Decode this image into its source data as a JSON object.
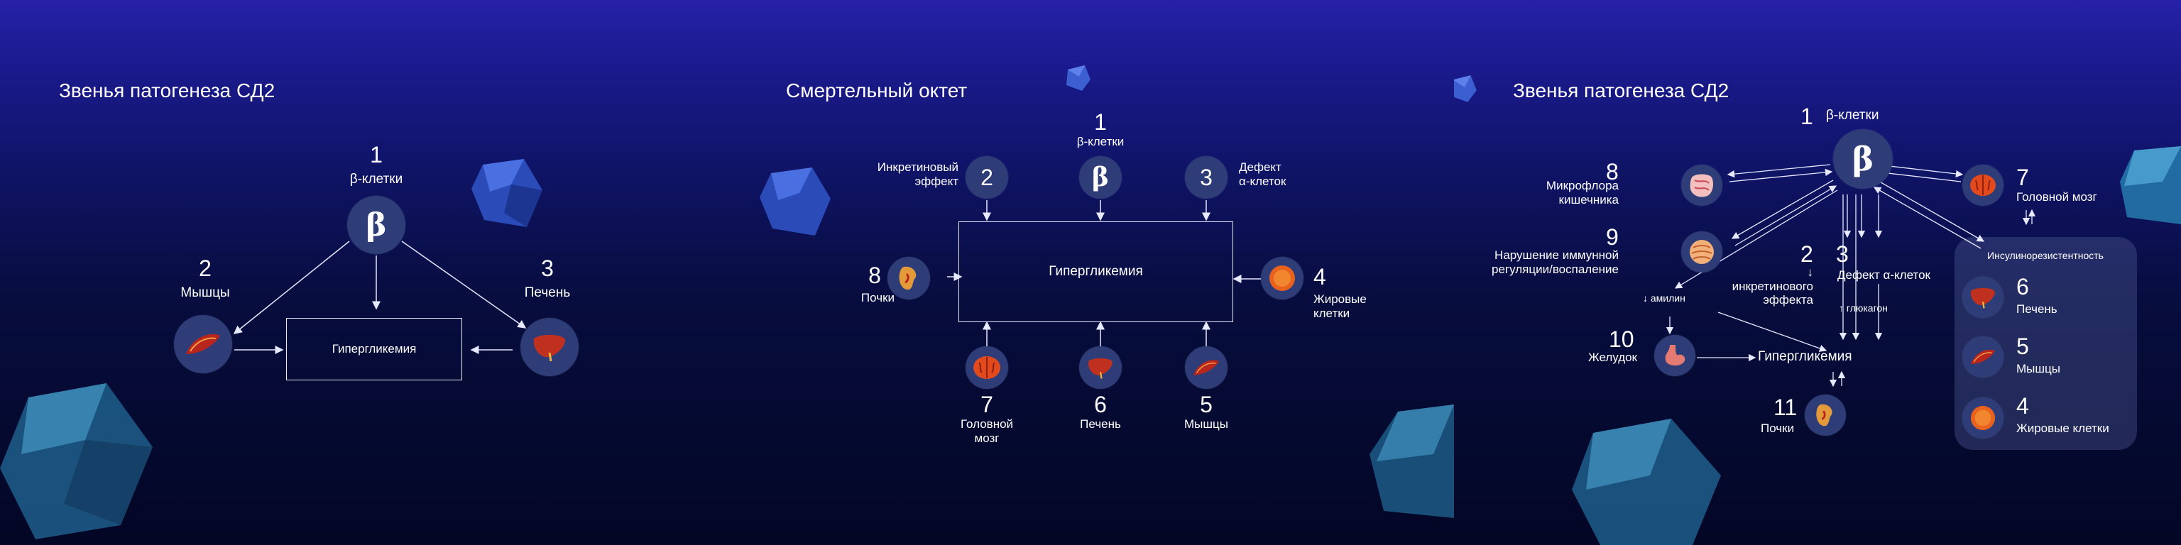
{
  "slide1": {
    "title": "Звенья патогенеза СД2",
    "n1": "1",
    "beta_cells": "β-клетки",
    "beta": "β",
    "n2": "2",
    "muscles": "Мышцы",
    "n3": "3",
    "liver": "Печень",
    "center": "Гипергликемия"
  },
  "slide2": {
    "title": "Смертельный октет",
    "n1": "1",
    "beta_cells": "β-клетки",
    "beta": "β",
    "n2": "2",
    "incretin": "Инкретиновый\nэффект",
    "n3": "3",
    "alpha": "Дефект\nα-клеток",
    "n4": "4",
    "fat": "Жировые\nклетки",
    "n5": "5",
    "muscles": "Мышцы",
    "n6": "6",
    "liver": "Печень",
    "n7": "7",
    "brain": "Головной\nмозг",
    "n8": "8",
    "kidneys": "Почки",
    "center": "Гипергликемия"
  },
  "slide3": {
    "title": "Звенья патогенеза СД2",
    "n1": "1",
    "beta_cells": "β-клетки",
    "beta": "β",
    "n2": "2",
    "incretin_defect": "↓ инкретинового\nэффекта",
    "n3": "3",
    "alpha_defect": "Дефект α-клеток",
    "glucagon": "↑ глюкагон",
    "n7": "7",
    "brain": "Головной мозг",
    "n8": "8",
    "microflora": "Микрофлора\nкишечника",
    "n9": "9",
    "immune": "Нарушение иммунной\nрегуляции/воспаление",
    "amylin": "↓ амилин",
    "n10": "10",
    "stomach": "Желудок",
    "center": "Гипергликемия",
    "n11": "11",
    "kidneys": "Почки",
    "insulin_resistance": "Инсулинорезистентность",
    "n6": "6",
    "liver": "Печень",
    "n5": "5",
    "muscles": "Мышцы",
    "n4": "4",
    "fat": "Жировые клетки"
  }
}
